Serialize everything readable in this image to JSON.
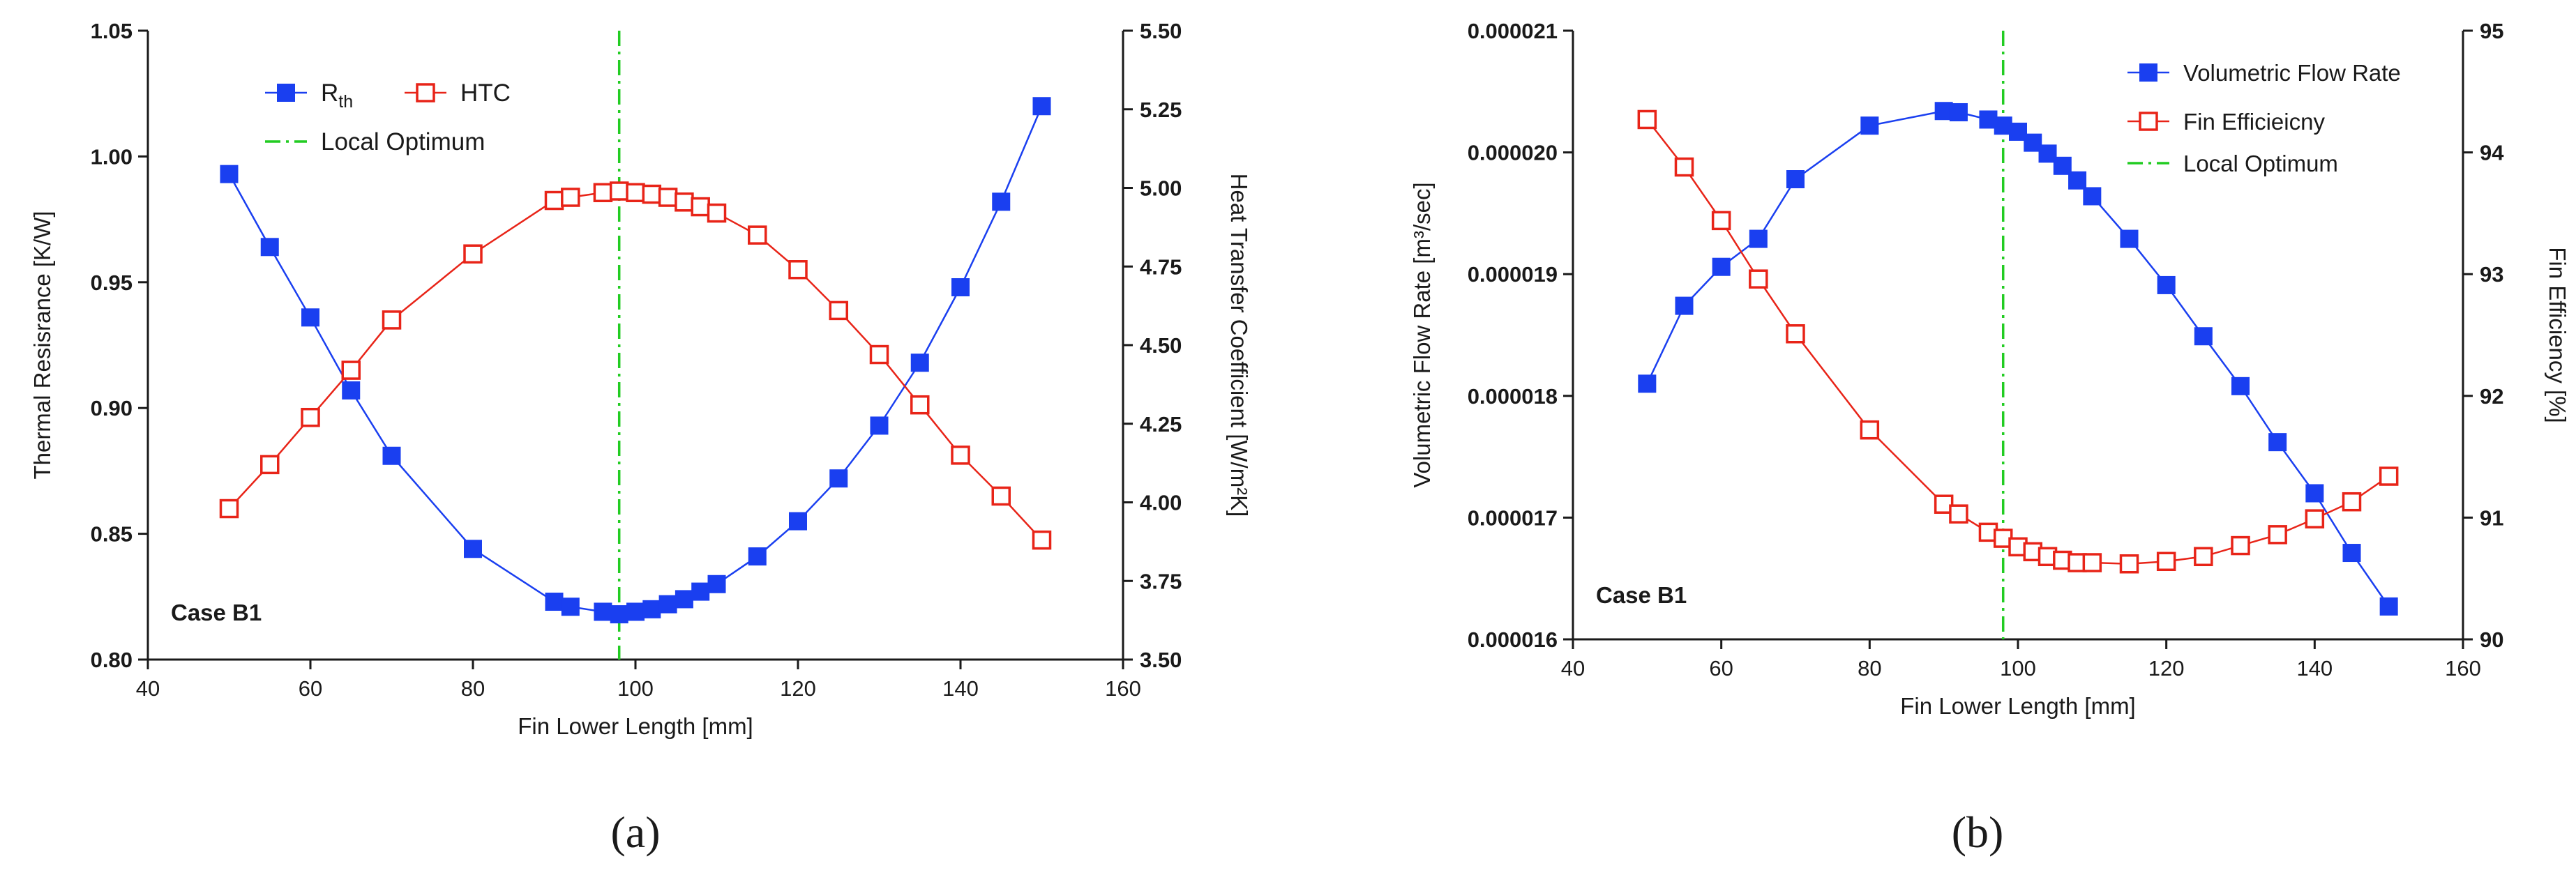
{
  "chart_data": [
    {
      "type": "line",
      "panel_label": "(a)",
      "annotation": "Case B1",
      "xlabel": "Fin Lower Length [mm]",
      "xlim": [
        40,
        160
      ],
      "xticks": [
        "40",
        "60",
        "80",
        "100",
        "120",
        "140",
        "160"
      ],
      "ylabel": "Thermal Resisrance [K/W]",
      "ylim": [
        0.8,
        1.05
      ],
      "yticks": [
        "0.80",
        "0.85",
        "0.90",
        "0.95",
        "1.00",
        "1.05"
      ],
      "y2label": "Heat Transfer Coefficient [W/m²K]",
      "y2lim": [
        3.5,
        5.5
      ],
      "y2ticks": [
        "3.50",
        "3.75",
        "4.00",
        "4.25",
        "4.50",
        "4.75",
        "5.00",
        "5.25",
        "5.50"
      ],
      "x": [
        50,
        55,
        60,
        65,
        70,
        80,
        90,
        92,
        96,
        98,
        100,
        102,
        104,
        106,
        108,
        110,
        115,
        120,
        125,
        130,
        135,
        140,
        145,
        150
      ],
      "series": [
        {
          "name": "R",
          "name_sub": "th",
          "axis": "left",
          "marker": "filled-square",
          "color": "#1a3ff0",
          "values": [
            0.993,
            0.964,
            0.936,
            0.907,
            0.881,
            0.844,
            0.823,
            0.821,
            0.819,
            0.818,
            0.819,
            0.82,
            0.822,
            0.824,
            0.827,
            0.83,
            0.841,
            0.855,
            0.872,
            0.893,
            0.918,
            0.948,
            0.982,
            1.02
          ]
        },
        {
          "name": "HTC",
          "axis": "right",
          "marker": "open-square",
          "color": "#e82418",
          "values": [
            3.98,
            4.12,
            4.27,
            4.42,
            4.58,
            4.79,
            4.96,
            4.97,
            4.985,
            4.99,
            4.985,
            4.98,
            4.97,
            4.955,
            4.94,
            4.92,
            4.85,
            4.74,
            4.61,
            4.47,
            4.31,
            4.15,
            4.02,
            3.88
          ]
        }
      ],
      "vline": {
        "name": "Local Optimum",
        "x": 98,
        "color": "#22cc22"
      }
    },
    {
      "type": "line",
      "panel_label": "(b)",
      "annotation": "Case B1",
      "xlabel": "Fin Lower Length [mm]",
      "xlim": [
        40,
        160
      ],
      "xticks": [
        "40",
        "60",
        "80",
        "100",
        "120",
        "140",
        "160"
      ],
      "ylabel": "Volumetric Flow Rate [m³/sec]",
      "ylim": [
        1.6e-05,
        2.1e-05
      ],
      "yticks": [
        "0.000016",
        "0.000017",
        "0.000018",
        "0.000019",
        "0.000020",
        "0.000021"
      ],
      "y2label": "Fin Efficiency [%]",
      "y2lim": [
        90,
        95
      ],
      "y2ticks": [
        "90",
        "91",
        "92",
        "93",
        "94",
        "95"
      ],
      "series": [
        {
          "name": "Volumetric Flow Rate",
          "axis": "left",
          "marker": "filled-square",
          "color": "#1a3ff0",
          "x": [
            50,
            55,
            60,
            65,
            70,
            80,
            90,
            92,
            96,
            98,
            100,
            102,
            104,
            106,
            108,
            110,
            115,
            120,
            125,
            130,
            135,
            140,
            145,
            150
          ],
          "values": [
            1.81e-05,
            1.874e-05,
            1.906e-05,
            1.929e-05,
            1.978e-05,
            2.022e-05,
            2.034e-05,
            2.033e-05,
            2.027e-05,
            2.022e-05,
            2.017e-05,
            2.008e-05,
            1.999e-05,
            1.989e-05,
            1.977e-05,
            1.964e-05,
            1.929e-05,
            1.891e-05,
            1.849e-05,
            1.808e-05,
            1.762e-05,
            1.72e-05,
            1.671e-05,
            1.627e-05
          ]
        },
        {
          "name": "Fin Efficieicny",
          "axis": "right",
          "marker": "open-square",
          "color": "#e82418",
          "x": [
            50,
            55,
            60,
            65,
            70,
            80,
            90,
            92,
            96,
            98,
            100,
            102,
            104,
            106,
            108,
            110,
            115,
            120,
            125,
            130,
            135,
            140,
            145,
            150
          ],
          "values": [
            94.27,
            93.88,
            93.44,
            92.96,
            92.51,
            91.72,
            91.11,
            91.03,
            90.88,
            90.83,
            90.76,
            90.72,
            90.68,
            90.65,
            90.63,
            90.63,
            90.62,
            90.64,
            90.68,
            90.77,
            90.86,
            90.99,
            91.13,
            91.34
          ]
        }
      ],
      "vline": {
        "name": "Local Optimum",
        "x": 98,
        "color": "#22cc22"
      }
    }
  ]
}
